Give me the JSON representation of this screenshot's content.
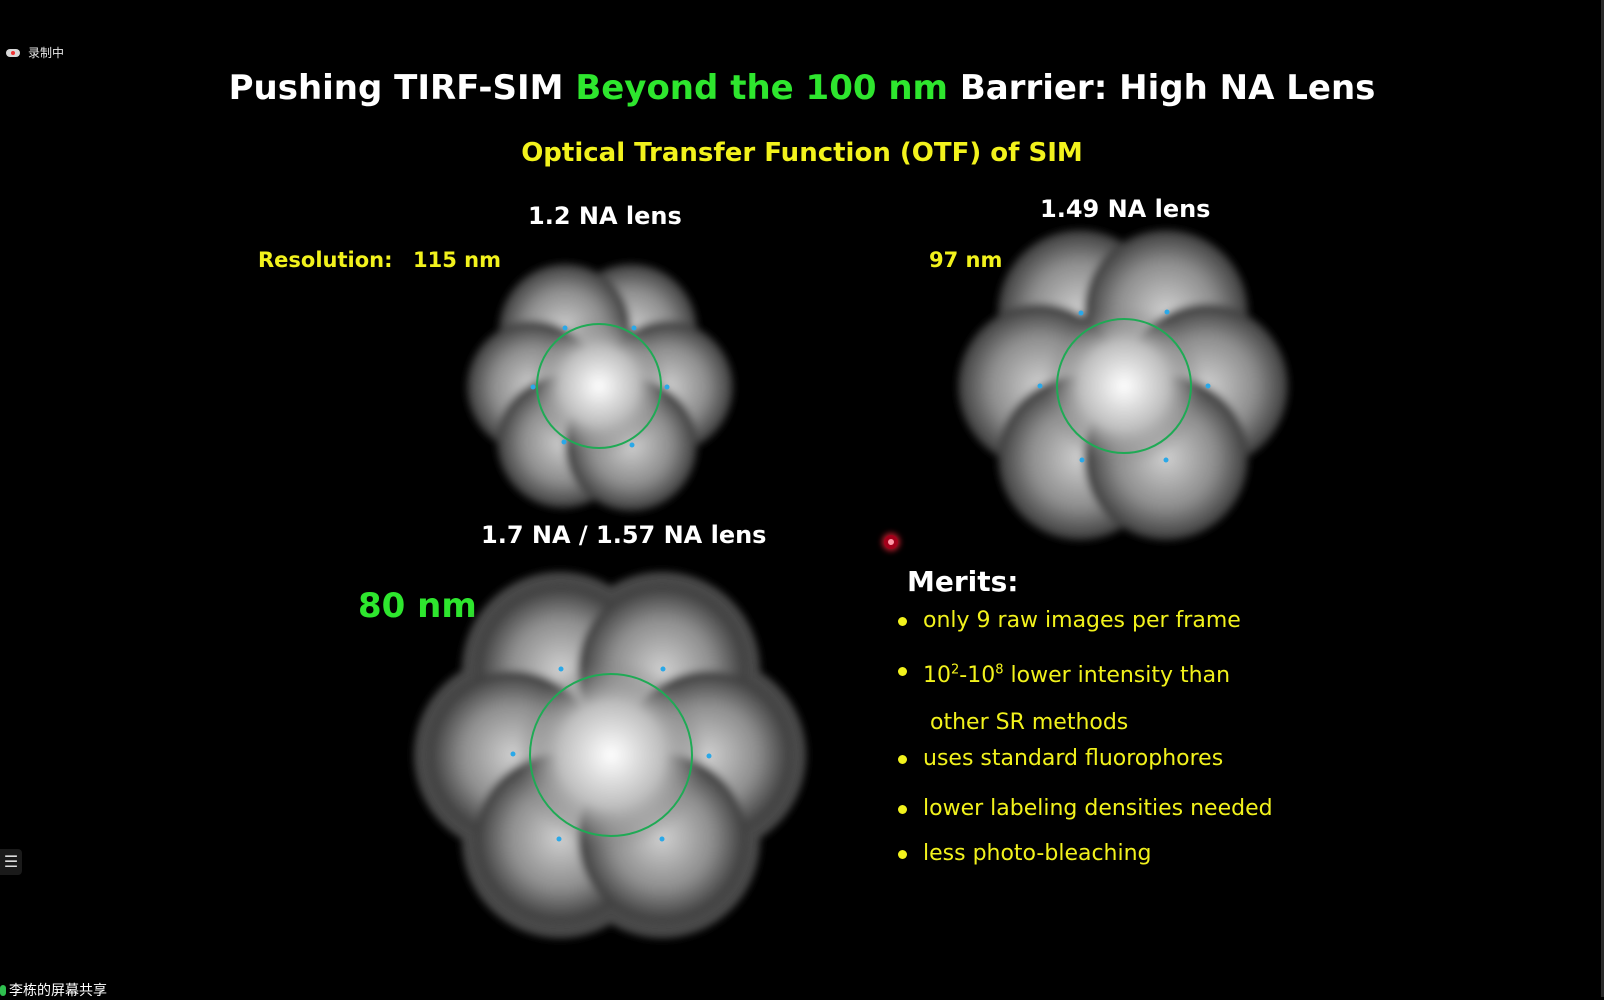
{
  "recording": {
    "label": "录制中"
  },
  "slide": {
    "title_pre": "Pushing TIRF-SIM ",
    "title_highlight": "Beyond the 100 nm",
    "title_post": " Barrier: High NA Lens",
    "subtitle": "Optical Transfer Function (OTF) of SIM",
    "panels": [
      {
        "lens_label": "1.2 NA lens",
        "resolution_label": "Resolution:",
        "resolution": "115 nm"
      },
      {
        "lens_label": "1.49 NA lens",
        "resolution": "97 nm"
      },
      {
        "lens_label": "1.7 NA / 1.57 NA lens",
        "resolution": "80 nm"
      }
    ],
    "merits_title": "Merits:",
    "merits": [
      "only 9 raw images per frame",
      "lower intensity than",
      "other SR methods",
      "uses standard fluorophores",
      "lower labeling densities needed",
      "less photo-bleaching"
    ],
    "merit_intensity_prefix": "10",
    "merit_intensity_exp1": "2",
    "merit_intensity_mid": "-10",
    "merit_intensity_exp2": "8"
  },
  "menu_icon": "menu-icon",
  "screen_share": {
    "label": "李栋的屏幕共享"
  },
  "colors": {
    "background": "#000000",
    "title": "#ffffff",
    "highlight_green": "#2ee62e",
    "yellow": "#f2f21c",
    "otf_circle": "#1faa55",
    "otf_dots": "#2aa8e8"
  }
}
